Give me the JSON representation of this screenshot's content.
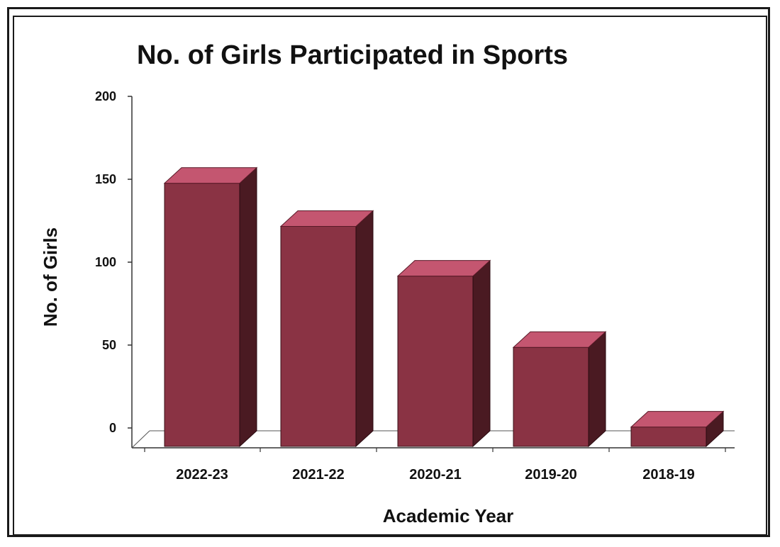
{
  "chart_data": {
    "type": "bar",
    "title": "No. of Girls Participated in Sports",
    "xlabel": "Academic Year",
    "ylabel": "No. of Girls",
    "categories": [
      "2022-23",
      "2021-22",
      "2020-21",
      "2019-20",
      "2018-19"
    ],
    "values": [
      157,
      131,
      101,
      58,
      10
    ],
    "ylim": [
      0,
      200
    ],
    "yticks": [
      "0",
      "50",
      "100",
      "150",
      "200"
    ],
    "grid": false,
    "legend": "none",
    "style": "3d-column",
    "colors": {
      "front": "#8a3344",
      "side": "#4a1a22",
      "top": "#c45670"
    }
  }
}
